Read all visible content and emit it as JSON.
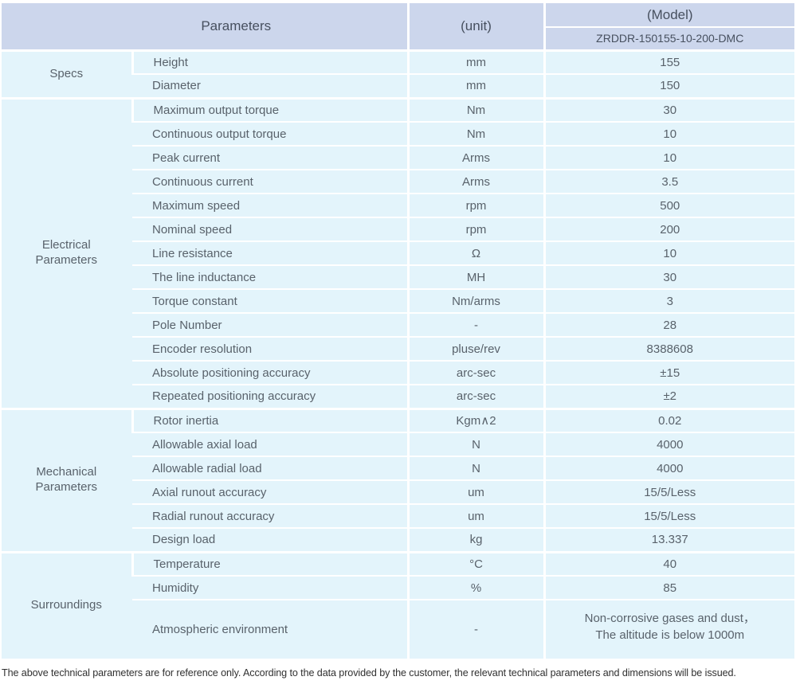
{
  "header": {
    "parameters_label": "Parameters",
    "unit_label": "(unit)",
    "model_label": "(Model)",
    "model_number": "ZRDDR-150155-10-200-DMC"
  },
  "groups": [
    {
      "name": "Specs",
      "rows": [
        {
          "param": "Height",
          "unit": "mm",
          "value": "155"
        },
        {
          "param": "Diameter",
          "unit": "mm",
          "value": "150"
        }
      ]
    },
    {
      "name": "Electrical\nParameters",
      "rows": [
        {
          "param": "Maximum output torque",
          "unit": "Nm",
          "value": "30"
        },
        {
          "param": "Continuous output torque",
          "unit": "Nm",
          "value": "10"
        },
        {
          "param": "Peak current",
          "unit": "Arms",
          "value": "10"
        },
        {
          "param": "Continuous current",
          "unit": "Arms",
          "value": "3.5"
        },
        {
          "param": "Maximum speed",
          "unit": "rpm",
          "value": "500"
        },
        {
          "param": "Nominal speed",
          "unit": "rpm",
          "value": "200"
        },
        {
          "param": "Line resistance",
          "unit": "Ω",
          "value": "10"
        },
        {
          "param": "The line inductance",
          "unit": "MH",
          "value": "30"
        },
        {
          "param": "Torque constant",
          "unit": "Nm/arms",
          "value": "3"
        },
        {
          "param": "Pole Number",
          "unit": "-",
          "value": "28"
        },
        {
          "param": "Encoder resolution",
          "unit": "pluse/rev",
          "value": "8388608"
        },
        {
          "param": "Absolute positioning accuracy",
          "unit": "arc-sec",
          "value": "±15"
        },
        {
          "param": "Repeated positioning accuracy",
          "unit": "arc-sec",
          "value": "±2"
        }
      ]
    },
    {
      "name": "Mechanical\nParameters",
      "rows": [
        {
          "param": "Rotor inertia",
          "unit": "Kgm∧2",
          "value": "0.02"
        },
        {
          "param": "Allowable axial load",
          "unit": "N",
          "value": "4000"
        },
        {
          "param": "Allowable radial load",
          "unit": "N",
          "value": "4000"
        },
        {
          "param": "Axial runout accuracy",
          "unit": "um",
          "value": "15/5/Less"
        },
        {
          "param": "Radial runout accuracy",
          "unit": "um",
          "value": "15/5/Less"
        },
        {
          "param": "Design load",
          "unit": "kg",
          "value": "13.337"
        }
      ]
    },
    {
      "name": "Surroundings",
      "rows": [
        {
          "param": "Temperature",
          "unit": "°C",
          "value": "40"
        },
        {
          "param": "Humidity",
          "unit": "%",
          "value": "85"
        },
        {
          "param": "Atmospheric environment",
          "unit": "-",
          "value": "Non-corrosive gases and dust，\nThe altitude is below 1000m"
        }
      ]
    }
  ],
  "footer": {
    "note": "The above technical parameters are for reference only. According to the data provided by the customer, the relevant technical parameters and dimensions will be issued."
  },
  "colors": {
    "header_bg": "#ccd6ec",
    "cell_bg": "#e3f4fb",
    "divider": "#ffffff",
    "header_text": "#47505f",
    "body_text": "#59626b",
    "note_text": "#303030"
  }
}
